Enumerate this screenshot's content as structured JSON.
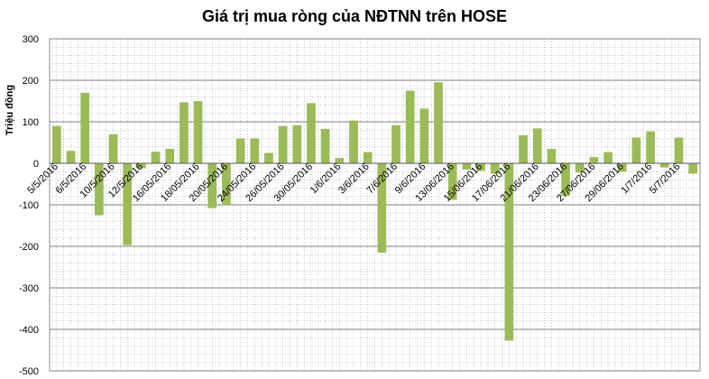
{
  "chart_data": {
    "type": "bar",
    "title": "Giá trị mua ròng của NĐTNN trên HOSE",
    "ylabel": "Triệu đồng",
    "xlabel": "",
    "ylim": [
      -500,
      300
    ],
    "yticks": [
      -500,
      -400,
      -300,
      -200,
      -100,
      0,
      100,
      200,
      300
    ],
    "grid": true,
    "legend": "none",
    "bar_color": "#9BBB59",
    "x_tick_labels": [
      "5/5/2016",
      "6/5/2016",
      "10/5/2016",
      "12/5/2016",
      "16/05/2016",
      "18/05/2016",
      "20/05/2016",
      "24/05/2016",
      "26/05/2016",
      "30/05/2016",
      "1/6/2016",
      "3/6/2016",
      "7/6/2016",
      "9/6/2016",
      "13/06/2016",
      "15/06/2016",
      "17/06/2016",
      "21/06/2016",
      "23/06/2016",
      "27/06/2016",
      "29/06/2016",
      "1/7/2016",
      "5/7/2016"
    ],
    "values": [
      90,
      30,
      170,
      -125,
      70,
      -197,
      -12,
      28,
      35,
      147,
      150,
      -108,
      -100,
      60,
      60,
      25,
      90,
      92,
      145,
      83,
      13,
      103,
      27,
      -215,
      92,
      175,
      132,
      195,
      -88,
      -15,
      -18,
      -25,
      -427,
      68,
      84,
      35,
      -78,
      -22,
      15,
      27,
      -20,
      62,
      77,
      -10,
      62,
      -25
    ]
  }
}
